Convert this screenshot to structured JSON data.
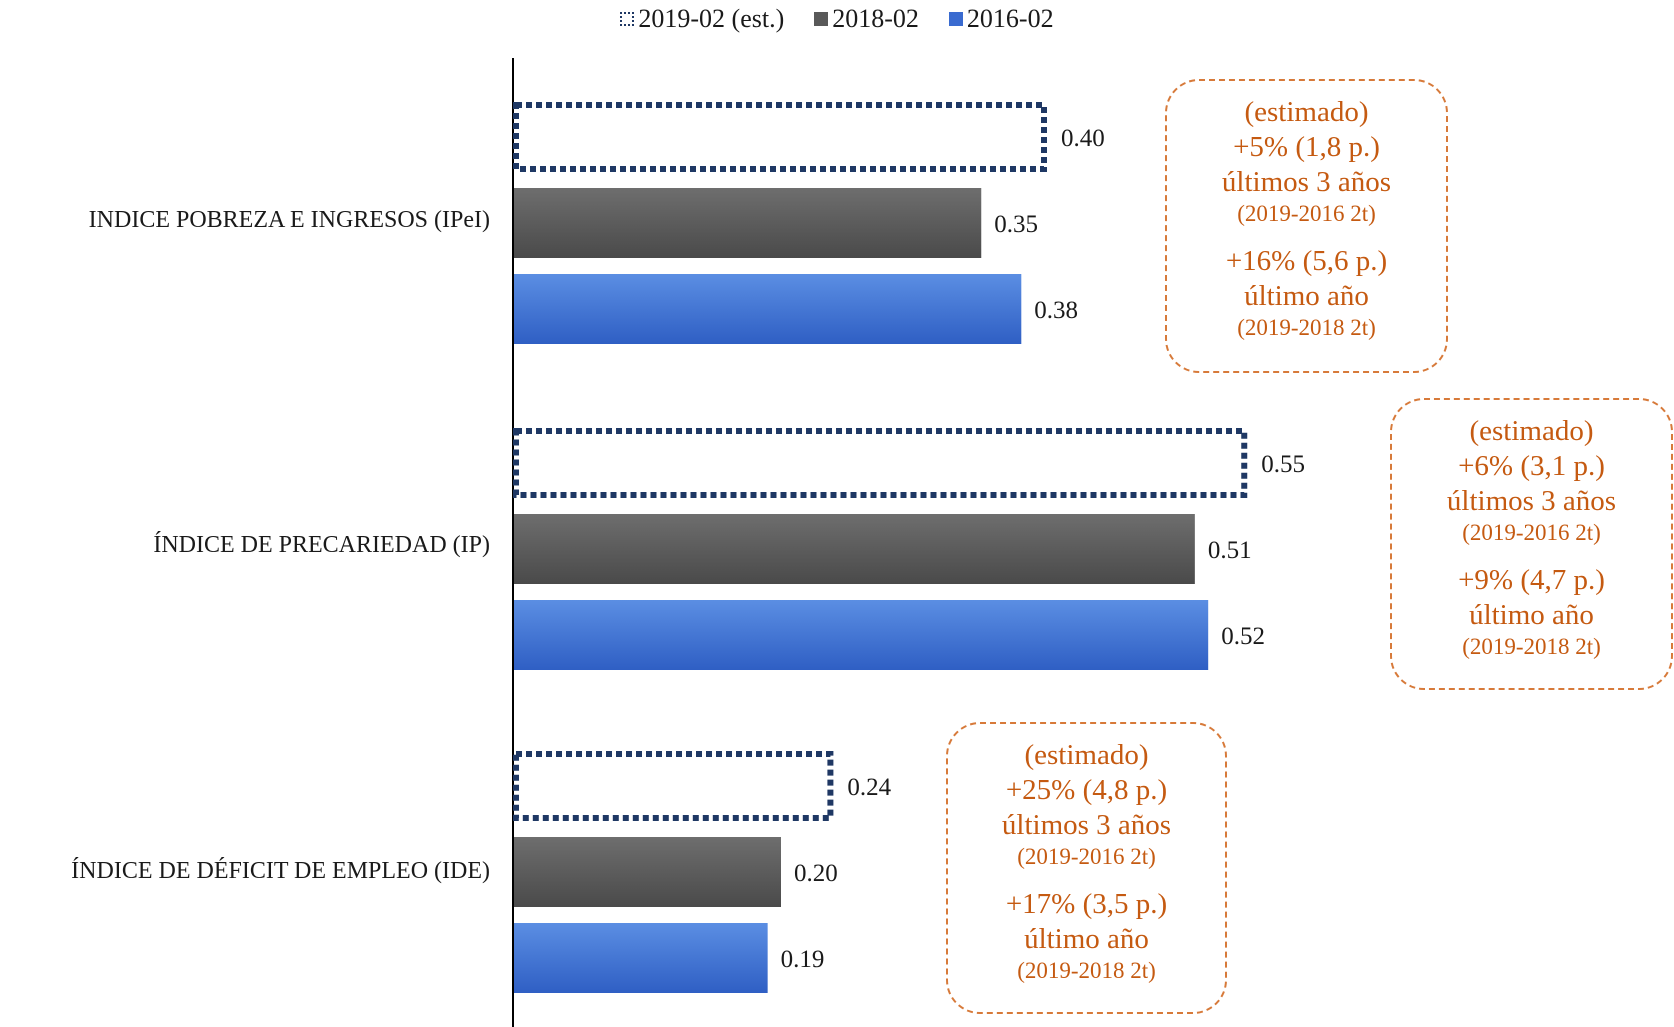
{
  "chart_data": {
    "type": "bar",
    "orientation": "horizontal",
    "categories": [
      "INDICE POBREZA E INGRESOS (IPeI)",
      "ÍNDICE DE PRECARIEDAD (IP)",
      "ÍNDICE DE DÉFICIT DE EMPLEO (IDE)"
    ],
    "series": [
      {
        "name": "2019-02 (est.)",
        "values": [
          0.4,
          0.55,
          0.24
        ],
        "color": "#1f3864",
        "style": "dotted-outline"
      },
      {
        "name": "2018-02",
        "values": [
          0.35,
          0.51,
          0.2
        ],
        "color": "#595959",
        "style": "solid"
      },
      {
        "name": "2016-02",
        "values": [
          0.38,
          0.52,
          0.19
        ],
        "color": "#3a6bd0",
        "style": "gradient"
      }
    ],
    "data_labels": [
      [
        "0.40",
        "0.35",
        "0.38"
      ],
      [
        "0.55",
        "0.51",
        "0.52"
      ],
      [
        "0.24",
        "0.20",
        "0.19"
      ]
    ],
    "xlim": [
      0,
      0.7
    ],
    "legend_position": "top-center",
    "grid": false
  },
  "annotations": [
    {
      "l1": "(estimado)",
      "l2": "+5% (1,8 p.)",
      "l3": "últimos 3 años",
      "l4": "(2019-2016 2t)",
      "l5": "+16% (5,6 p.)",
      "l6": "último año",
      "l7": "(2019-2018 2t)"
    },
    {
      "l1": "(estimado)",
      "l2": "+6% (3,1 p.)",
      "l3": "últimos 3 años",
      "l4": "(2019-2016 2t)",
      "l5": "+9% (4,7 p.)",
      "l6": "último año",
      "l7": "(2019-2018 2t)"
    },
    {
      "l1": "(estimado)",
      "l2": "+25% (4,8 p.)",
      "l3": "últimos 3 años",
      "l4": "(2019-2016 2t)",
      "l5": "+17% (3,5 p.)",
      "l6": "último año",
      "l7": "(2019-2018 2t)"
    }
  ],
  "colors": {
    "annotation_text": "#c55a11",
    "annotation_border": "#d77a3a"
  }
}
